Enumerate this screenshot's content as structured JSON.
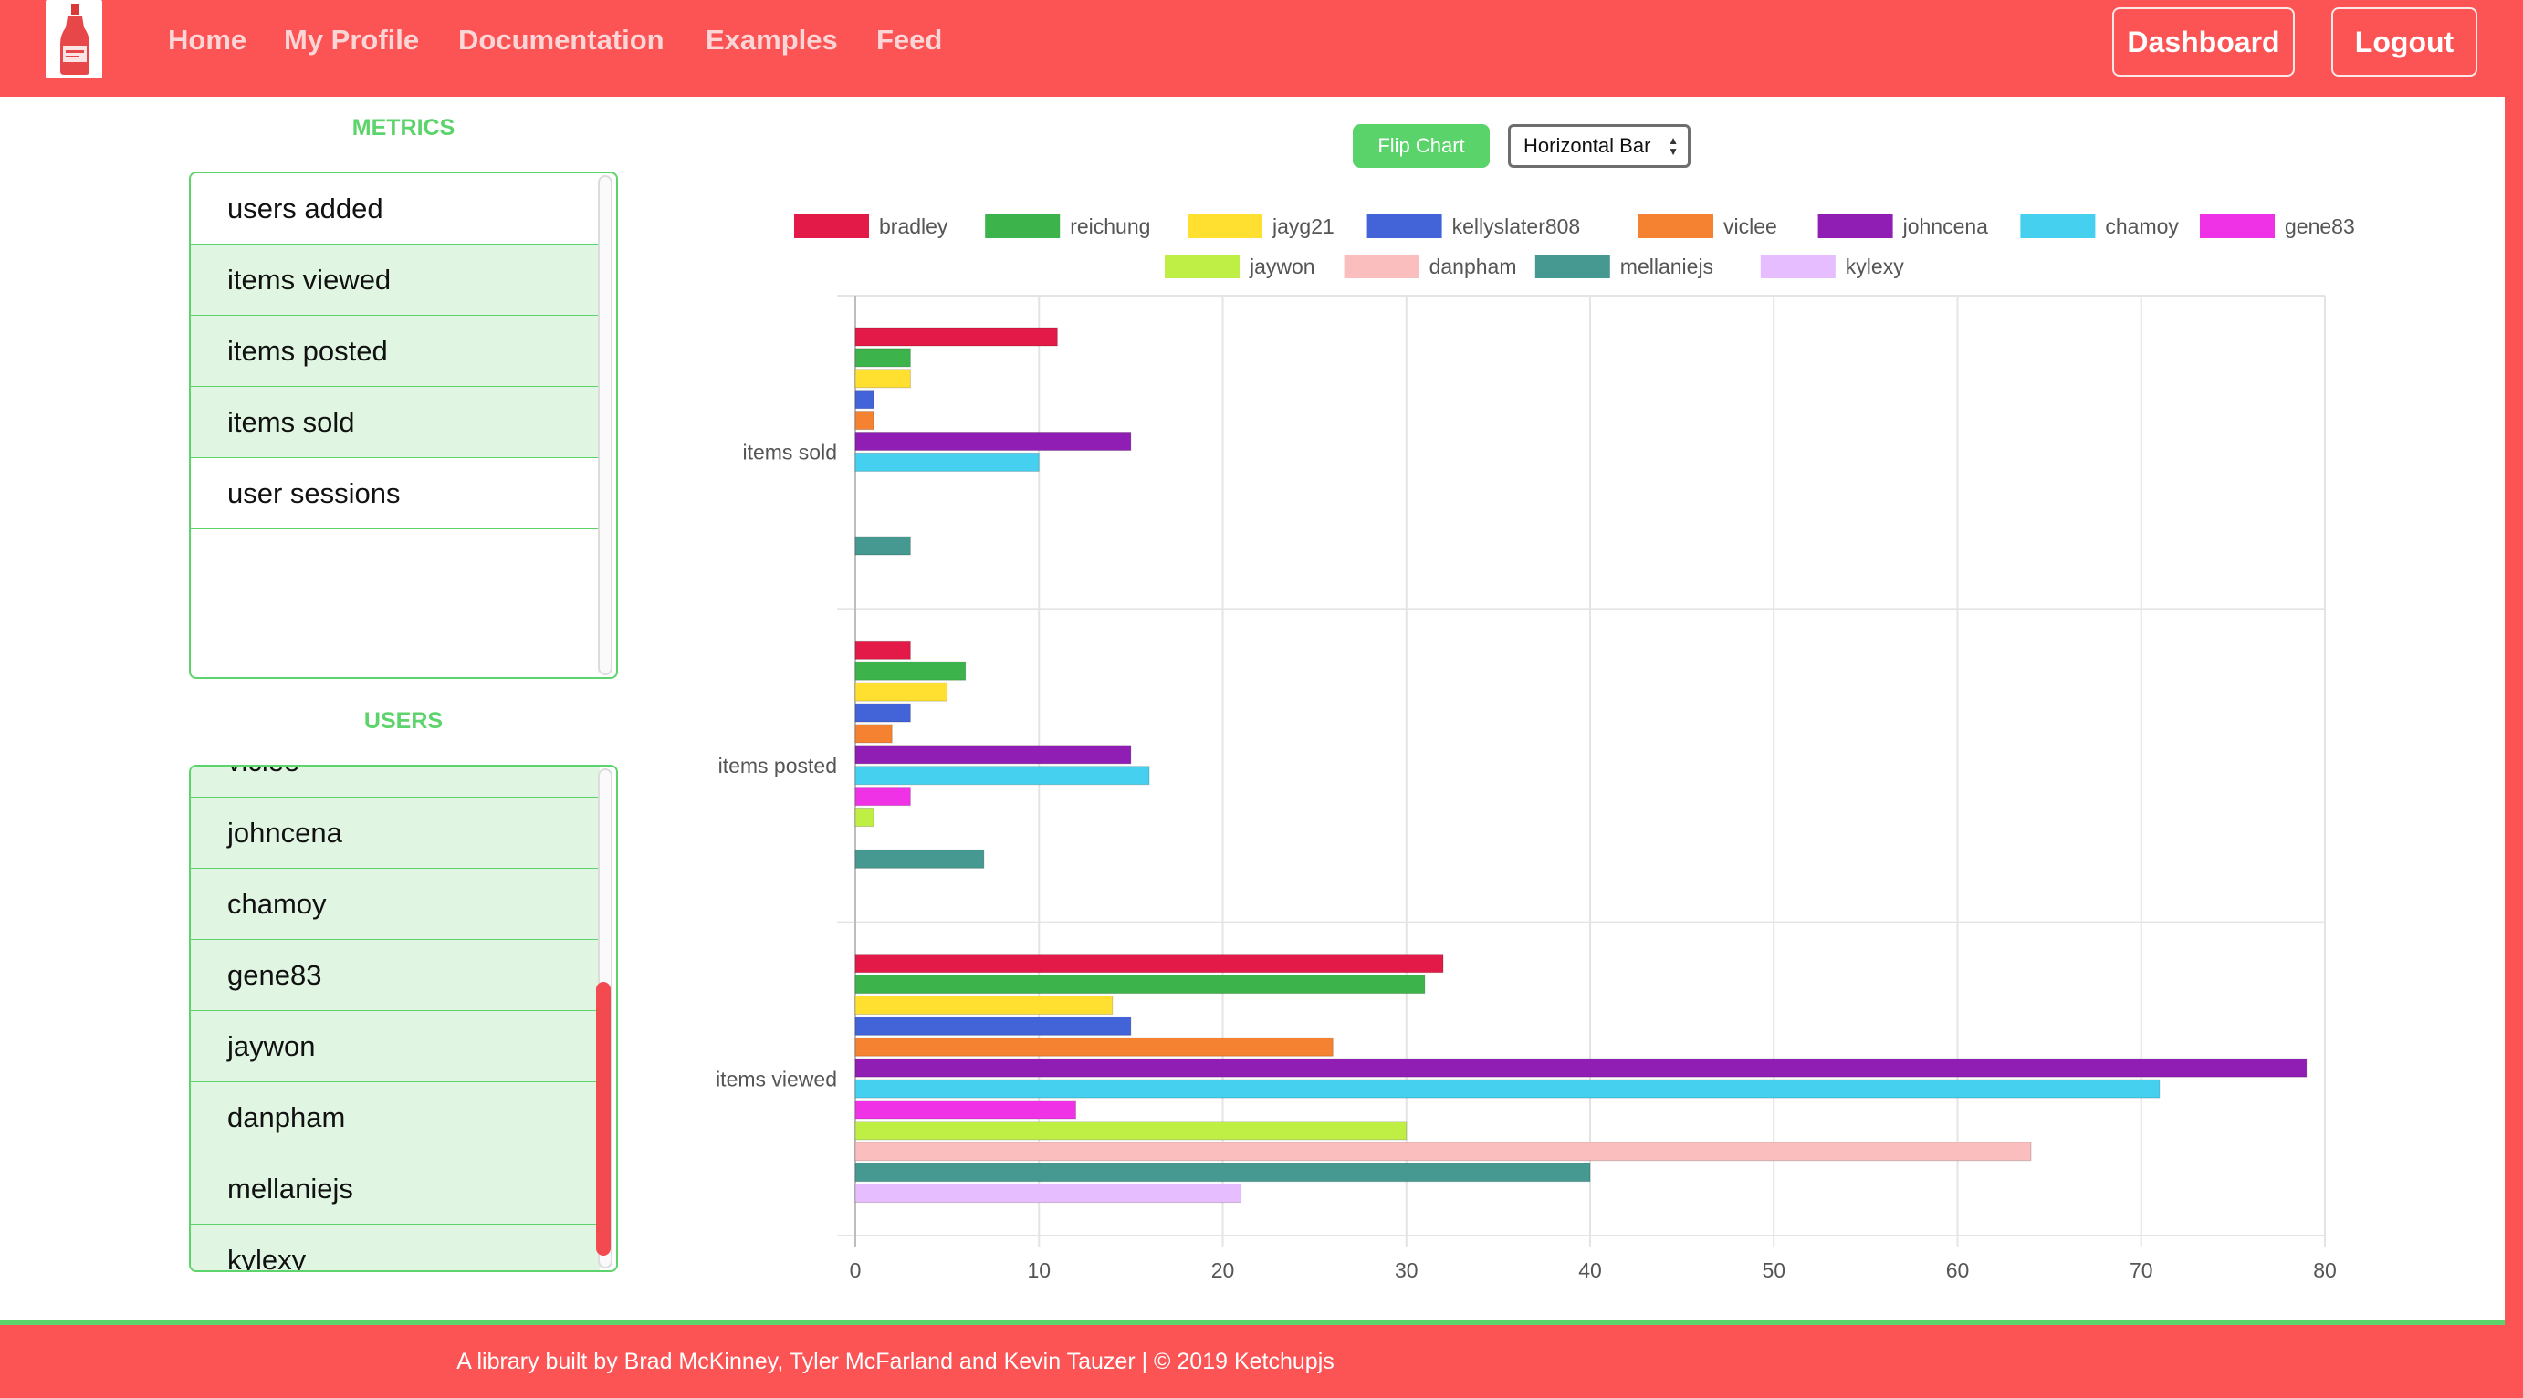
{
  "nav": {
    "links": [
      "Home",
      "My Profile",
      "Documentation",
      "Examples",
      "Feed"
    ],
    "dashboard_label": "Dashboard",
    "logout_label": "Logout"
  },
  "metrics": {
    "title": "METRICS",
    "items": [
      "users added",
      "items viewed",
      "items posted",
      "items sold",
      "user sessions"
    ],
    "active": [
      false,
      true,
      true,
      true,
      false
    ]
  },
  "users": {
    "title": "USERS",
    "items": [
      "viclee",
      "johncena",
      "chamoy",
      "gene83",
      "jaywon",
      "danpham",
      "mellaniejs",
      "kylexy"
    ]
  },
  "controls": {
    "flip_label": "Flip Chart",
    "chart_type_selected": "Horizontal Bar"
  },
  "footer": {
    "text": "A library built by Brad McKinney, Tyler McFarland and Kevin Tauzer | © 2019 Ketchupjs"
  },
  "colors": {
    "brand_red": "#fc5355",
    "accent_green": "#5dd36b"
  },
  "icons": {
    "logo": "ketchup-bottle-icon",
    "select_arrows": "updown-arrows-icon"
  },
  "chart_data": {
    "type": "bar",
    "orientation": "horizontal",
    "categories": [
      "items sold",
      "items posted",
      "items viewed"
    ],
    "xlim": [
      0,
      80
    ],
    "xticks": [
      0,
      10,
      20,
      30,
      40,
      50,
      60,
      70,
      80
    ],
    "grid": true,
    "legend_position": "top",
    "series": [
      {
        "name": "bradley",
        "color": "#e31a47",
        "values": [
          11,
          3,
          32
        ]
      },
      {
        "name": "reichung",
        "color": "#3cb44b",
        "values": [
          3,
          6,
          31
        ]
      },
      {
        "name": "jayg21",
        "color": "#ffe030",
        "values": [
          3,
          5,
          14
        ]
      },
      {
        "name": "kellyslater808",
        "color": "#4363d8",
        "values": [
          1,
          3,
          15
        ]
      },
      {
        "name": "viclee",
        "color": "#f58231",
        "values": [
          1,
          2,
          26
        ]
      },
      {
        "name": "johncena",
        "color": "#911eb4",
        "values": [
          15,
          15,
          79
        ]
      },
      {
        "name": "chamoy",
        "color": "#46d0f0",
        "values": [
          10,
          16,
          71
        ]
      },
      {
        "name": "gene83",
        "color": "#f032e6",
        "values": [
          0,
          3,
          12
        ]
      },
      {
        "name": "jaywon",
        "color": "#bfef45",
        "values": [
          0,
          1,
          30
        ]
      },
      {
        "name": "danpham",
        "color": "#fabebe",
        "values": [
          0,
          0,
          64
        ]
      },
      {
        "name": "mellaniejs",
        "color": "#469990",
        "values": [
          3,
          7,
          40
        ]
      },
      {
        "name": "kylexy",
        "color": "#e6beff",
        "values": [
          0,
          0,
          21
        ]
      }
    ]
  }
}
